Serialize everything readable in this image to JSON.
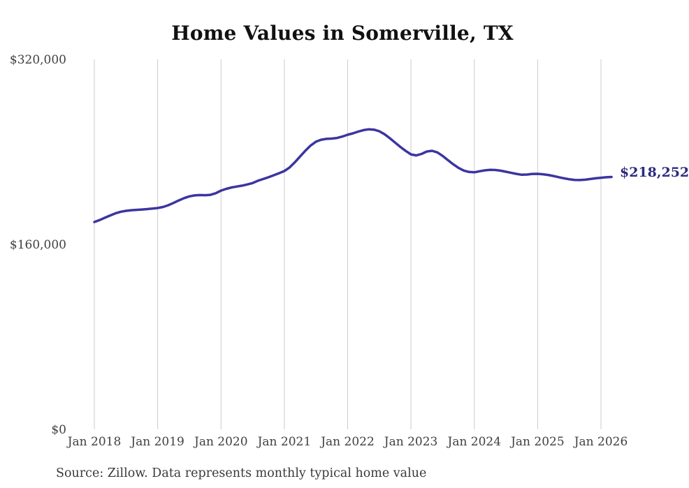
{
  "title": "Home Values in Somerville, TX",
  "end_label": "$218,252",
  "source_note": "Source: Zillow. Data represents monthly typical home value",
  "colors": {
    "line": "#3b35a0",
    "end_label_text": "#2d2b80",
    "grid": "#cccccc",
    "axis_text": "#404040",
    "title_text": "#111111",
    "background": "#ffffff"
  },
  "chart_data": {
    "type": "line",
    "title": "Home Values in Somerville, TX",
    "xlabel": "",
    "ylabel": "",
    "ylim": [
      0,
      320000
    ],
    "grid": "vertical-only",
    "legend": "none",
    "x_tick_labels": [
      "Jan 2018",
      "Jan 2019",
      "Jan 2020",
      "Jan 2021",
      "Jan 2022",
      "Jan 2023",
      "Jan 2024",
      "Jan 2025",
      "Jan 2026"
    ],
    "y_ticks": [
      {
        "label": "$0",
        "value": 0
      },
      {
        "label": "$160,000",
        "value": 160000
      },
      {
        "label": "$320,000",
        "value": 320000
      }
    ],
    "last_value": 218252,
    "last_value_label": "$218,252",
    "series": [
      {
        "name": "Typical home value",
        "unit": "USD",
        "x": [
          "2018-01",
          "2018-02",
          "2018-03",
          "2018-04",
          "2018-05",
          "2018-06",
          "2018-07",
          "2018-08",
          "2018-09",
          "2018-10",
          "2018-11",
          "2018-12",
          "2019-01",
          "2019-02",
          "2019-03",
          "2019-04",
          "2019-05",
          "2019-06",
          "2019-07",
          "2019-08",
          "2019-09",
          "2019-10",
          "2019-11",
          "2019-12",
          "2020-01",
          "2020-02",
          "2020-03",
          "2020-04",
          "2020-05",
          "2020-06",
          "2020-07",
          "2020-08",
          "2020-09",
          "2020-10",
          "2020-11",
          "2020-12",
          "2021-01",
          "2021-02",
          "2021-03",
          "2021-04",
          "2021-05",
          "2021-06",
          "2021-07",
          "2021-08",
          "2021-09",
          "2021-10",
          "2021-11",
          "2021-12",
          "2022-01",
          "2022-02",
          "2022-03",
          "2022-04",
          "2022-05",
          "2022-06",
          "2022-07",
          "2022-08",
          "2022-09",
          "2022-10",
          "2022-11",
          "2022-12",
          "2023-01",
          "2023-02",
          "2023-03",
          "2023-04",
          "2023-05",
          "2023-06",
          "2023-07",
          "2023-08",
          "2023-09",
          "2023-10",
          "2023-11",
          "2023-12",
          "2024-01",
          "2024-02",
          "2024-03",
          "2024-04",
          "2024-05",
          "2024-06",
          "2024-07",
          "2024-08",
          "2024-09",
          "2024-10",
          "2024-11",
          "2024-12",
          "2025-01",
          "2025-02",
          "2025-03",
          "2025-04",
          "2025-05",
          "2025-06",
          "2025-07",
          "2025-08",
          "2025-09",
          "2025-10",
          "2025-11",
          "2025-12",
          "2026-01",
          "2026-02",
          "2026-03"
        ],
        "values": [
          179300,
          181000,
          183000,
          185000,
          186800,
          188200,
          189000,
          189500,
          189800,
          190100,
          190500,
          191000,
          191400,
          192300,
          193800,
          195800,
          198000,
          200000,
          201500,
          202300,
          202600,
          202500,
          202800,
          204200,
          206500,
          208000,
          209200,
          210000,
          210800,
          211800,
          213000,
          215000,
          216500,
          218000,
          219800,
          221500,
          223400,
          226500,
          231000,
          236000,
          241000,
          245500,
          248800,
          250500,
          251200,
          251500,
          252000,
          253200,
          254800,
          256000,
          257500,
          258800,
          259500,
          259200,
          257800,
          255200,
          251800,
          248000,
          244200,
          240800,
          237800,
          236900,
          238200,
          240300,
          240900,
          239500,
          236500,
          232800,
          229300,
          226200,
          223800,
          222600,
          222300,
          223200,
          224000,
          224400,
          224300,
          223700,
          222800,
          221800,
          220900,
          220200,
          220400,
          220900,
          221000,
          220600,
          220000,
          219100,
          218100,
          217100,
          216300,
          215700,
          215600,
          215900,
          216500,
          217100,
          217600,
          218000,
          218252
        ]
      }
    ]
  }
}
